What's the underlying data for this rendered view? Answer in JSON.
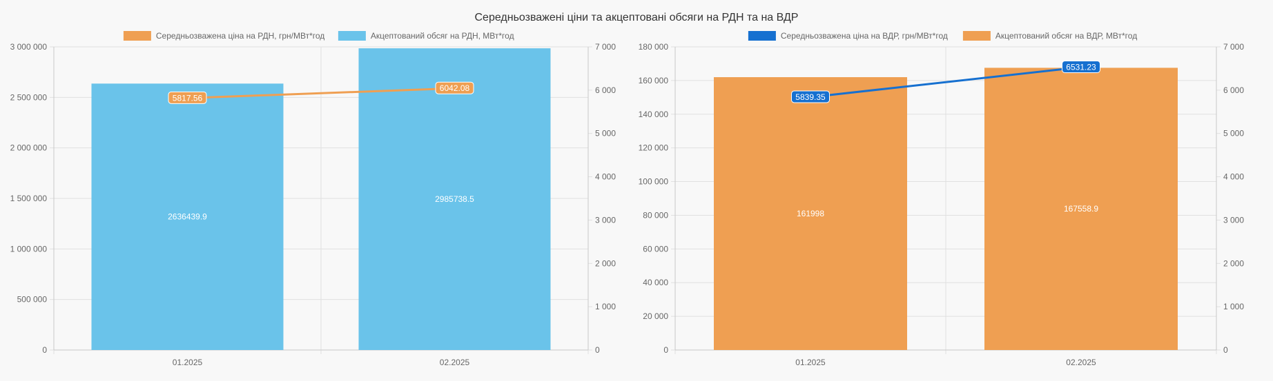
{
  "title": "Середньозважені ціни та акцептовані обсяги на РДН та на ВДР",
  "colors": {
    "background": "#f8f8f8",
    "grid": "#e0e0e0",
    "axis": "#c8c8c8",
    "blue_bar": "#6ac3ea",
    "orange": "#ef9f52",
    "dark_blue": "#1670d0"
  },
  "chart_data": [
    {
      "type": "bar",
      "categories": [
        "01.2025",
        "02.2025"
      ],
      "legend": [
        {
          "name": "Середньозважена ціна на РДН, грн/МВт*год",
          "color": "#ef9f52"
        },
        {
          "name": "Акцептований обсяг на РДН, МВт*год",
          "color": "#6ac3ea"
        }
      ],
      "bars": {
        "name": "Акцептований обсяг на РДН, МВт*год",
        "values": [
          2636439.9,
          2985738.5
        ],
        "labels": [
          "2636439.9",
          "2985738.5"
        ],
        "color": "#6ac3ea"
      },
      "line": {
        "name": "Середньозважена ціна на РДН, грн/МВт*год",
        "values": [
          5817.56,
          6042.08
        ],
        "labels": [
          "5817.56",
          "6042.08"
        ],
        "color": "#ef9f52"
      },
      "y_left": {
        "min": 0,
        "max": 3000000,
        "ticks": [
          "0",
          "500 000",
          "1 000 000",
          "1 500 000",
          "2 000 000",
          "2 500 000",
          "3 000 000"
        ]
      },
      "y_right": {
        "min": 0,
        "max": 7000,
        "ticks": [
          "0",
          "1 000",
          "2 000",
          "3 000",
          "4 000",
          "5 000",
          "6 000",
          "7 000"
        ]
      },
      "grid": true,
      "legend_position": "top"
    },
    {
      "type": "bar",
      "categories": [
        "01.2025",
        "02.2025"
      ],
      "legend": [
        {
          "name": "Середньозважена ціна на ВДР, грн/МВт*год",
          "color": "#1670d0"
        },
        {
          "name": "Акцептований обсяг на ВДР, МВт*год",
          "color": "#ef9f52"
        }
      ],
      "bars": {
        "name": "Акцептований обсяг на ВДР, МВт*год",
        "values": [
          161998,
          167558.9
        ],
        "labels": [
          "161998",
          "167558.9"
        ],
        "color": "#ef9f52"
      },
      "line": {
        "name": "Середньозважена ціна на ВДР, грн/МВт*год",
        "values": [
          5839.35,
          6531.23
        ],
        "labels": [
          "5839.35",
          "6531.23"
        ],
        "color": "#1670d0"
      },
      "y_left": {
        "min": 0,
        "max": 180000,
        "ticks": [
          "0",
          "20 000",
          "40 000",
          "60 000",
          "80 000",
          "100 000",
          "120 000",
          "140 000",
          "160 000",
          "180 000"
        ]
      },
      "y_right": {
        "min": 0,
        "max": 7000,
        "ticks": [
          "0",
          "1 000",
          "2 000",
          "3 000",
          "4 000",
          "5 000",
          "6 000",
          "7 000"
        ]
      },
      "grid": true,
      "legend_position": "top"
    }
  ]
}
